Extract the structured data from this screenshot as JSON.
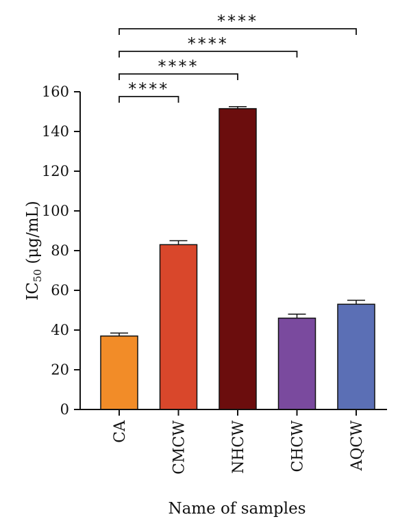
{
  "chart_data": {
    "type": "bar",
    "categories": [
      "CA",
      "CMCW",
      "NHCW",
      "CHCW",
      "AQCW"
    ],
    "values": [
      37,
      83,
      151.5,
      46,
      53
    ],
    "errors": [
      1.5,
      2,
      1,
      2,
      2
    ],
    "colors": [
      "#f28c28",
      "#d9472b",
      "#6b0d0d",
      "#7a4a9e",
      "#5b6fb5"
    ],
    "ylabel_main": "IC",
    "ylabel_sub": "50",
    "ylabel_unit": " (μg/mL)",
    "xlabel": "Name of samples",
    "ylim": [
      0,
      160
    ],
    "yticks": [
      0,
      20,
      40,
      60,
      80,
      100,
      120,
      140,
      160
    ],
    "grid": false,
    "significance": [
      {
        "from": "CA",
        "to": "CMCW",
        "label": "****"
      },
      {
        "from": "CA",
        "to": "NHCW",
        "label": "****"
      },
      {
        "from": "CA",
        "to": "CHCW",
        "label": "****"
      },
      {
        "from": "CA",
        "to": "AQCW",
        "label": "****"
      }
    ]
  }
}
